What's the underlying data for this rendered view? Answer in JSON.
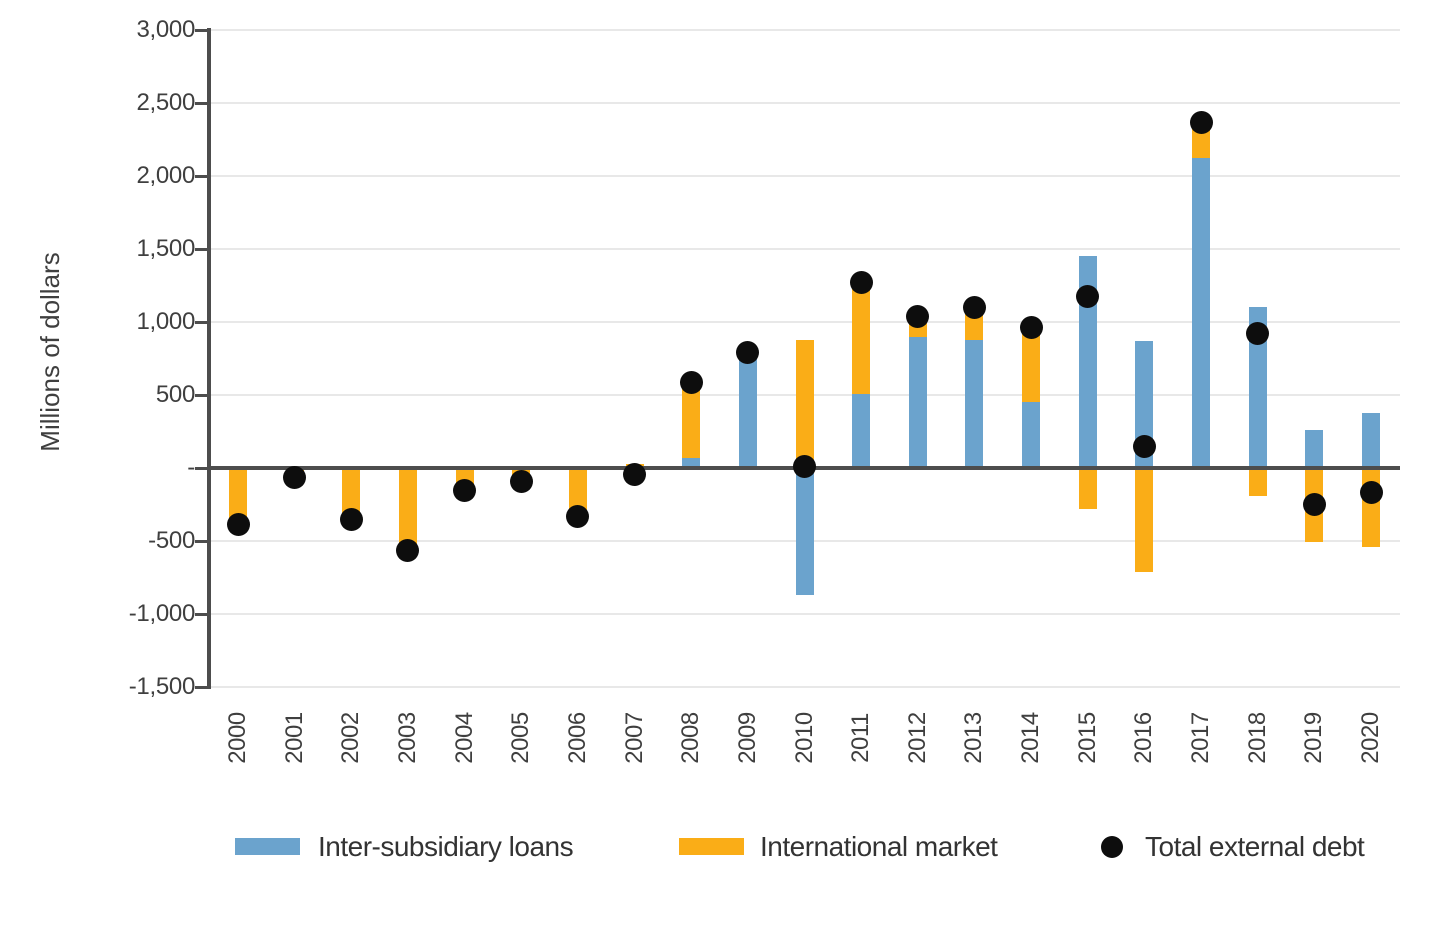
{
  "chart_data": {
    "type": "bar",
    "subtype": "stacked-bars-with-scatter-total",
    "title": "",
    "xlabel": "",
    "ylabel": "Millions of dollars",
    "ylim": [
      -1500,
      3000
    ],
    "grid": true,
    "legend_position": "bottom",
    "y_axis": {
      "tick_values": [
        3000,
        2500,
        2000,
        1500,
        1000,
        500,
        0,
        -500,
        -1000,
        -1500
      ],
      "tick_labels": [
        "3,000",
        "2,500",
        "2,000",
        "1,500",
        "1,000",
        "500",
        "-",
        "-500",
        "-1,000",
        "-1,500"
      ]
    },
    "categories": [
      "2000",
      "2001",
      "2002",
      "2003",
      "2004",
      "2005",
      "2006",
      "2007",
      "2008",
      "2009",
      "2010",
      "2011",
      "2012",
      "2013",
      "2014",
      "2015",
      "2016",
      "2017",
      "2018",
      "2019",
      "2020"
    ],
    "series": [
      {
        "name": "Inter-subsidiary loans",
        "type": "bar",
        "color": "#6ba3cd",
        "values": [
          0,
          0,
          0,
          0,
          0,
          0,
          0,
          -70,
          70,
          775,
          -870,
          505,
          895,
          875,
          450,
          1455,
          870,
          2120,
          1105,
          260,
          375
        ]
      },
      {
        "name": "International market",
        "type": "bar",
        "color": "#faad17",
        "values": [
          -380,
          -60,
          -345,
          -560,
          -150,
          -90,
          -330,
          25,
          515,
          10,
          875,
          760,
          135,
          215,
          515,
          -280,
          -710,
          245,
          -190,
          -505,
          -540
        ]
      },
      {
        "name": "Total external debt",
        "type": "scatter",
        "color": "#0d0d0d",
        "values": [
          -385,
          -65,
          -350,
          -565,
          -155,
          -95,
          -335,
          -45,
          585,
          790,
          10,
          1270,
          1035,
          1100,
          965,
          1175,
          150,
          2365,
          920,
          -250,
          -170
        ]
      }
    ]
  }
}
